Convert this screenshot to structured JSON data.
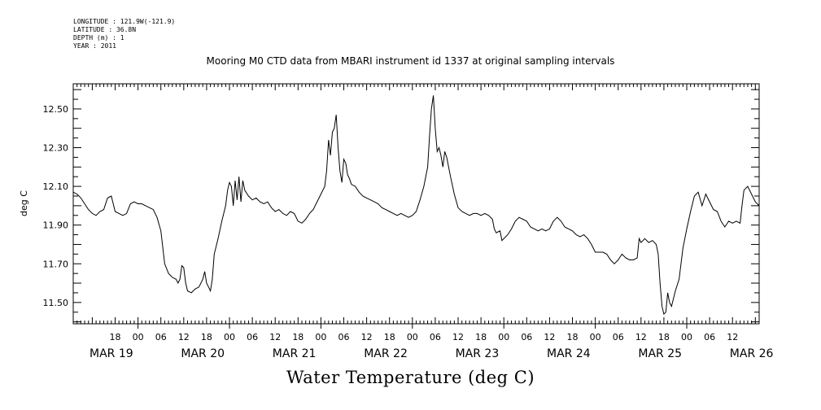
{
  "header": {
    "longitude": "LONGITUDE : 121.9W(-121.9)",
    "latitude": "LATITUDE : 36.8N",
    "depth": "DEPTH (m) : 1",
    "year": "YEAR : 2011"
  },
  "chart_data": {
    "type": "line",
    "title": "Mooring M0 CTD data from MBARI instrument id 1337 at original sampling intervals",
    "xlabel": "Water Temperature (deg C)",
    "ylabel": "deg C",
    "ylim": [
      11.39,
      12.63
    ],
    "xlim_hours_after_mar19_0000": [
      -17,
      163
    ],
    "y_tick_labels": [
      "12.50",
      "12.30",
      "12.10",
      "11.90",
      "11.70",
      "11.50"
    ],
    "y_ticks": [
      12.5,
      12.3,
      12.1,
      11.9,
      11.7,
      11.5
    ],
    "x_hour_ticks": [
      {
        "h": -6,
        "label": "18"
      },
      {
        "h": 0,
        "label": "00"
      },
      {
        "h": 6,
        "label": "06"
      },
      {
        "h": 12,
        "label": "12"
      },
      {
        "h": 18,
        "label": "18"
      },
      {
        "h": 24,
        "label": "00"
      },
      {
        "h": 30,
        "label": "06"
      },
      {
        "h": 36,
        "label": "12"
      },
      {
        "h": 42,
        "label": "18"
      },
      {
        "h": 48,
        "label": "00"
      },
      {
        "h": 54,
        "label": "06"
      },
      {
        "h": 60,
        "label": "12"
      },
      {
        "h": 66,
        "label": "18"
      },
      {
        "h": 72,
        "label": "00"
      },
      {
        "h": 78,
        "label": "06"
      },
      {
        "h": 84,
        "label": "12"
      },
      {
        "h": 90,
        "label": "18"
      },
      {
        "h": 96,
        "label": "00"
      },
      {
        "h": 102,
        "label": "06"
      },
      {
        "h": 108,
        "label": "12"
      },
      {
        "h": 114,
        "label": "18"
      },
      {
        "h": 120,
        "label": "00"
      },
      {
        "h": 126,
        "label": "06"
      },
      {
        "h": 132,
        "label": "12"
      },
      {
        "h": 138,
        "label": "18"
      },
      {
        "h": 144,
        "label": "00"
      },
      {
        "h": 150,
        "label": "06"
      },
      {
        "h": 156,
        "label": "12"
      }
    ],
    "x_day_labels": [
      {
        "h": -7,
        "label": "MAR 19"
      },
      {
        "h": 17,
        "label": "MAR 20"
      },
      {
        "h": 41,
        "label": "MAR 21"
      },
      {
        "h": 65,
        "label": "MAR 22"
      },
      {
        "h": 89,
        "label": "MAR 23"
      },
      {
        "h": 113,
        "label": "MAR 24"
      },
      {
        "h": 137,
        "label": "MAR 25"
      },
      {
        "h": 161,
        "label": "MAR 26"
      }
    ],
    "grid": false,
    "series": [
      {
        "color": "#000000",
        "points": [
          [
            -17,
            12.07
          ],
          [
            -16,
            12.06
          ],
          [
            -15,
            12.04
          ],
          [
            -14,
            12.01
          ],
          [
            -13,
            11.98
          ],
          [
            -12,
            11.96
          ],
          [
            -11,
            11.95
          ],
          [
            -10,
            11.97
          ],
          [
            -9,
            11.98
          ],
          [
            -8,
            12.04
          ],
          [
            -7,
            12.05
          ],
          [
            -6,
            11.97
          ],
          [
            -5,
            11.96
          ],
          [
            -4,
            11.95
          ],
          [
            -3,
            11.96
          ],
          [
            -2,
            12.01
          ],
          [
            -1,
            12.02
          ],
          [
            0,
            12.01
          ],
          [
            1,
            12.01
          ],
          [
            2,
            12.0
          ],
          [
            3,
            11.99
          ],
          [
            4,
            11.98
          ],
          [
            5,
            11.94
          ],
          [
            6,
            11.87
          ],
          [
            7,
            11.7
          ],
          [
            8,
            11.65
          ],
          [
            9,
            11.63
          ],
          [
            10,
            11.62
          ],
          [
            10.5,
            11.6
          ],
          [
            11,
            11.62
          ],
          [
            11.5,
            11.69
          ],
          [
            12,
            11.68
          ],
          [
            12.5,
            11.6
          ],
          [
            13,
            11.56
          ],
          [
            14,
            11.55
          ],
          [
            15,
            11.57
          ],
          [
            16,
            11.58
          ],
          [
            17,
            11.62
          ],
          [
            17.5,
            11.66
          ],
          [
            18,
            11.6
          ],
          [
            18.5,
            11.58
          ],
          [
            19,
            11.56
          ],
          [
            19.5,
            11.62
          ],
          [
            20,
            11.75
          ],
          [
            21,
            11.83
          ],
          [
            22,
            11.92
          ],
          [
            23,
            12.0
          ],
          [
            23.5,
            12.08
          ],
          [
            24,
            12.12
          ],
          [
            24.5,
            12.1
          ],
          [
            25,
            12.0
          ],
          [
            25.5,
            12.13
          ],
          [
            26,
            12.03
          ],
          [
            26.5,
            12.15
          ],
          [
            27,
            12.02
          ],
          [
            27.5,
            12.13
          ],
          [
            28,
            12.08
          ],
          [
            29,
            12.05
          ],
          [
            30,
            12.03
          ],
          [
            31,
            12.04
          ],
          [
            32,
            12.02
          ],
          [
            33,
            12.01
          ],
          [
            34,
            12.02
          ],
          [
            35,
            11.99
          ],
          [
            36,
            11.97
          ],
          [
            37,
            11.98
          ],
          [
            38,
            11.96
          ],
          [
            39,
            11.95
          ],
          [
            40,
            11.97
          ],
          [
            41,
            11.96
          ],
          [
            42,
            11.92
          ],
          [
            43,
            11.91
          ],
          [
            44,
            11.93
          ],
          [
            45,
            11.96
          ],
          [
            46,
            11.98
          ],
          [
            47,
            12.02
          ],
          [
            48,
            12.06
          ],
          [
            49,
            12.1
          ],
          [
            49.5,
            12.18
          ],
          [
            50,
            12.34
          ],
          [
            50.5,
            12.26
          ],
          [
            51,
            12.38
          ],
          [
            51.5,
            12.4
          ],
          [
            52,
            12.47
          ],
          [
            52.5,
            12.3
          ],
          [
            53,
            12.18
          ],
          [
            53.5,
            12.12
          ],
          [
            54,
            12.24
          ],
          [
            54.5,
            12.22
          ],
          [
            55,
            12.16
          ],
          [
            55.5,
            12.14
          ],
          [
            56,
            12.11
          ],
          [
            57,
            12.1
          ],
          [
            58,
            12.07
          ],
          [
            59,
            12.05
          ],
          [
            60,
            12.04
          ],
          [
            61,
            12.03
          ],
          [
            62,
            12.02
          ],
          [
            63,
            12.01
          ],
          [
            64,
            11.99
          ],
          [
            65,
            11.98
          ],
          [
            66,
            11.97
          ],
          [
            67,
            11.96
          ],
          [
            68,
            11.95
          ],
          [
            69,
            11.96
          ],
          [
            70,
            11.95
          ],
          [
            71,
            11.94
          ],
          [
            72,
            11.95
          ],
          [
            73,
            11.97
          ],
          [
            74,
            12.03
          ],
          [
            75,
            12.1
          ],
          [
            76,
            12.2
          ],
          [
            76.5,
            12.36
          ],
          [
            77,
            12.5
          ],
          [
            77.5,
            12.57
          ],
          [
            78,
            12.4
          ],
          [
            78.5,
            12.28
          ],
          [
            79,
            12.3
          ],
          [
            79.5,
            12.26
          ],
          [
            80,
            12.2
          ],
          [
            80.5,
            12.28
          ],
          [
            81,
            12.25
          ],
          [
            82,
            12.15
          ],
          [
            83,
            12.06
          ],
          [
            84,
            11.99
          ],
          [
            85,
            11.97
          ],
          [
            86,
            11.96
          ],
          [
            87,
            11.95
          ],
          [
            88,
            11.96
          ],
          [
            89,
            11.96
          ],
          [
            90,
            11.95
          ],
          [
            91,
            11.96
          ],
          [
            92,
            11.95
          ],
          [
            93,
            11.93
          ],
          [
            93.5,
            11.88
          ],
          [
            94,
            11.86
          ],
          [
            95,
            11.87
          ],
          [
            95.5,
            11.82
          ],
          [
            96,
            11.83
          ],
          [
            97,
            11.85
          ],
          [
            98,
            11.88
          ],
          [
            99,
            11.92
          ],
          [
            100,
            11.94
          ],
          [
            101,
            11.93
          ],
          [
            102,
            11.92
          ],
          [
            103,
            11.89
          ],
          [
            104,
            11.88
          ],
          [
            105,
            11.87
          ],
          [
            106,
            11.88
          ],
          [
            107,
            11.87
          ],
          [
            108,
            11.88
          ],
          [
            109,
            11.92
          ],
          [
            110,
            11.94
          ],
          [
            111,
            11.92
          ],
          [
            112,
            11.89
          ],
          [
            113,
            11.88
          ],
          [
            114,
            11.87
          ],
          [
            115,
            11.85
          ],
          [
            116,
            11.84
          ],
          [
            117,
            11.85
          ],
          [
            118,
            11.83
          ],
          [
            119,
            11.8
          ],
          [
            120,
            11.76
          ],
          [
            121,
            11.76
          ],
          [
            122,
            11.76
          ],
          [
            123,
            11.75
          ],
          [
            124,
            11.72
          ],
          [
            125,
            11.7
          ],
          [
            126,
            11.72
          ],
          [
            127,
            11.75
          ],
          [
            128,
            11.73
          ],
          [
            129,
            11.72
          ],
          [
            130,
            11.72
          ],
          [
            131,
            11.73
          ],
          [
            131.5,
            11.83
          ],
          [
            132,
            11.81
          ],
          [
            133,
            11.83
          ],
          [
            134,
            11.81
          ],
          [
            135,
            11.82
          ],
          [
            136,
            11.8
          ],
          [
            136.5,
            11.75
          ],
          [
            137,
            11.6
          ],
          [
            137.5,
            11.48
          ],
          [
            138,
            11.44
          ],
          [
            138.5,
            11.45
          ],
          [
            139,
            11.55
          ],
          [
            139.5,
            11.5
          ],
          [
            140,
            11.48
          ],
          [
            141,
            11.56
          ],
          [
            142,
            11.62
          ],
          [
            143,
            11.78
          ],
          [
            144,
            11.88
          ],
          [
            145,
            11.97
          ],
          [
            146,
            12.05
          ],
          [
            147,
            12.07
          ],
          [
            148,
            12.0
          ],
          [
            149,
            12.06
          ],
          [
            150,
            12.02
          ],
          [
            151,
            11.98
          ],
          [
            152,
            11.97
          ],
          [
            153,
            11.92
          ],
          [
            154,
            11.89
          ],
          [
            155,
            11.92
          ],
          [
            156,
            11.91
          ],
          [
            157,
            11.92
          ],
          [
            158,
            11.91
          ],
          [
            158.5,
            12.0
          ],
          [
            159,
            12.08
          ],
          [
            160,
            12.1
          ],
          [
            161,
            12.06
          ],
          [
            162,
            12.02
          ],
          [
            163,
            12.0
          ]
        ]
      }
    ]
  }
}
